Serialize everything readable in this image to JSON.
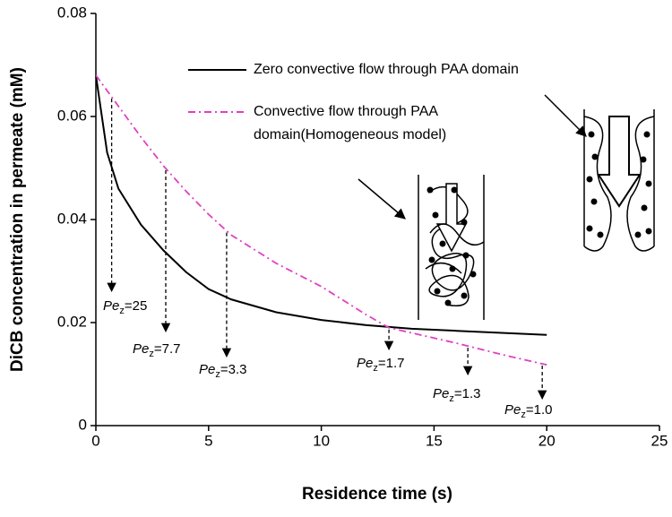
{
  "chart_data": {
    "type": "line",
    "x_label": "Residence time (s)",
    "y_label": "DiCB concentration in permeate (mM)",
    "xlim": [
      0,
      25
    ],
    "xticks": [
      0,
      5,
      10,
      15,
      20,
      25
    ],
    "ylim": [
      0,
      0.08
    ],
    "yticks": [
      0,
      0.02,
      0.04,
      0.06,
      0.08
    ],
    "series": [
      {
        "name": "Zero convective flow through PAA domain",
        "color": "#000000",
        "style": "solid",
        "x": [
          0,
          0.5,
          1,
          2,
          3,
          4,
          5,
          6,
          8,
          10,
          12,
          14,
          16,
          18,
          20
        ],
        "values": [
          0.068,
          0.053,
          0.046,
          0.039,
          0.034,
          0.0298,
          0.0265,
          0.0245,
          0.022,
          0.0205,
          0.0195,
          0.0188,
          0.0184,
          0.018,
          0.0176
        ]
      },
      {
        "name": "Convective flow through PAA domain(Homogeneous model)",
        "color": "#e040c0",
        "style": "dashdot",
        "x": [
          0,
          1,
          2,
          3,
          4,
          5,
          6,
          8,
          10,
          12,
          13,
          14,
          16,
          18,
          20
        ],
        "values": [
          0.068,
          0.062,
          0.056,
          0.0504,
          0.0455,
          0.041,
          0.037,
          0.0315,
          0.027,
          0.0215,
          0.019,
          0.018,
          0.016,
          0.0138,
          0.0118
        ]
      }
    ],
    "pe_symbol": "Pe",
    "pe_subscript": "z",
    "pe_markers": [
      {
        "x": 0.7,
        "label": "=25"
      },
      {
        "x": 3.1,
        "label": "=7.7"
      },
      {
        "x": 5.8,
        "label": "=3.3"
      },
      {
        "x": 13,
        "label": "=1.7"
      },
      {
        "x": 16.5,
        "label": "=1.3"
      },
      {
        "x": 19.8,
        "label": "=1.0"
      }
    ]
  }
}
